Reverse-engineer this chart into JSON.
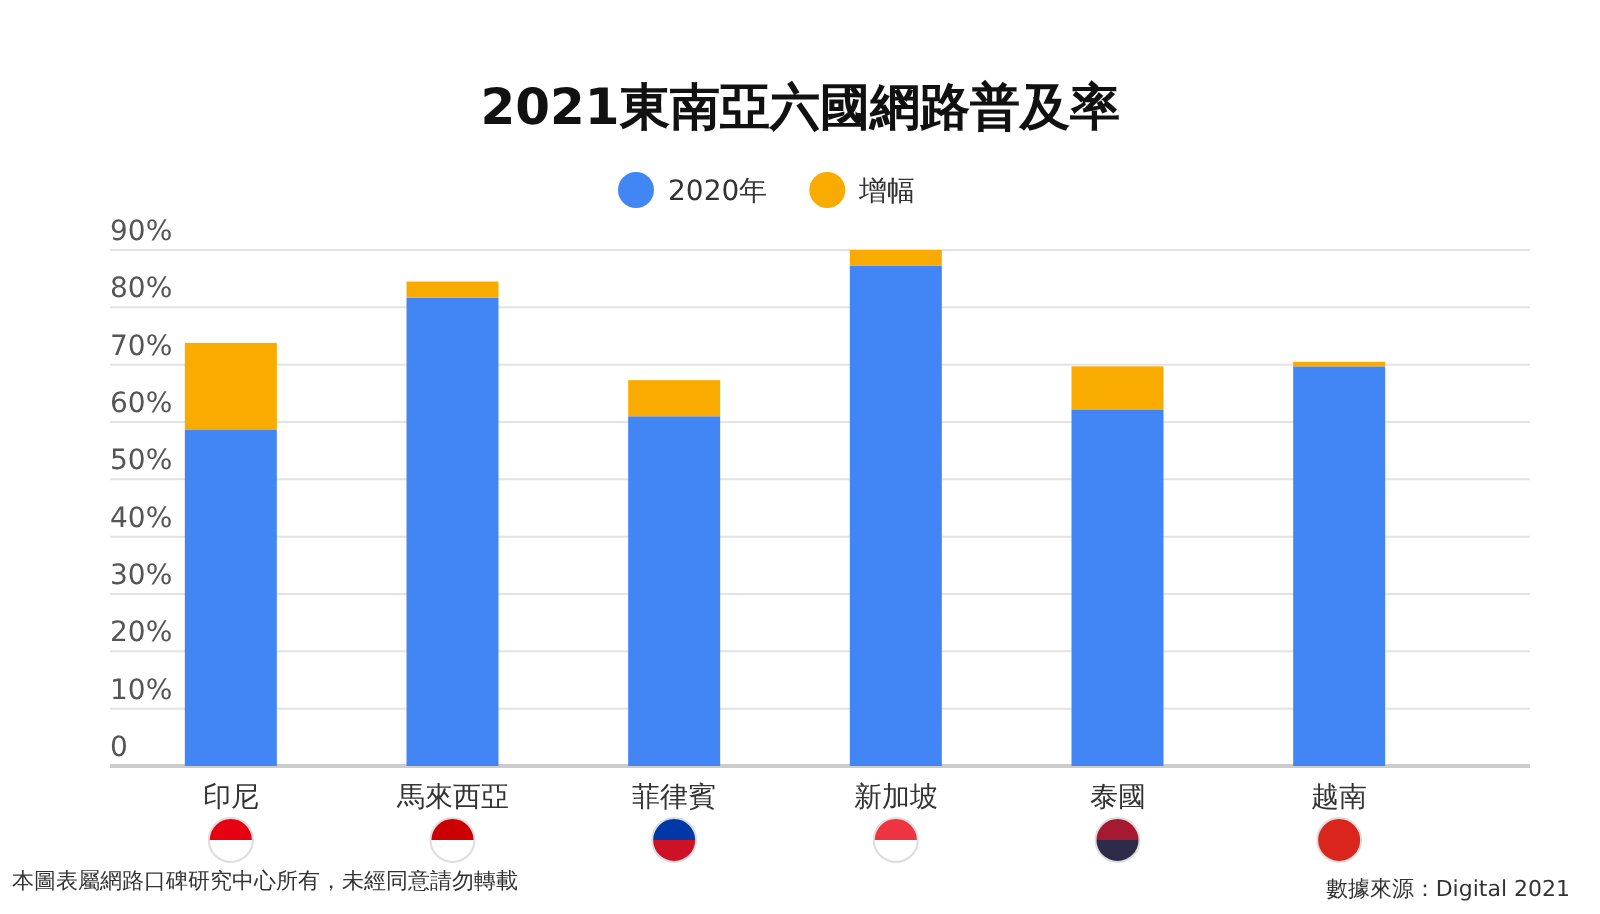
{
  "chart_data": {
    "type": "bar",
    "title": "2021東南亞六國網路普及率",
    "stacked": true,
    "categories": [
      "印尼",
      "馬來西亞",
      "菲律賓",
      "新加坡",
      "泰國",
      "越南"
    ],
    "series": [
      {
        "name": "2020年",
        "color": "#4285f4",
        "values": [
          58.6,
          81.7,
          61.0,
          87.3,
          62.2,
          69.7
        ]
      },
      {
        "name": "增幅",
        "color": "#f9ab00",
        "values": [
          15.2,
          2.8,
          6.3,
          2.7,
          7.5,
          0.8
        ]
      }
    ],
    "ylim": [
      0,
      90
    ],
    "yticks": [
      {
        "value": 0,
        "label": "0"
      },
      {
        "value": 10,
        "label": "10%"
      },
      {
        "value": 20,
        "label": "20%"
      },
      {
        "value": 30,
        "label": "30%"
      },
      {
        "value": 40,
        "label": "40%"
      },
      {
        "value": 50,
        "label": "50%"
      },
      {
        "value": 60,
        "label": "60%"
      },
      {
        "value": 70,
        "label": "70%"
      },
      {
        "value": 80,
        "label": "80%"
      },
      {
        "value": 90,
        "label": "90%"
      }
    ],
    "grid": "y",
    "legend": "top",
    "annotations": [
      "本圖表屬網路口碑研究中心所有，未經同意請勿轉載",
      "數據來源：Digital 2021"
    ]
  }
}
